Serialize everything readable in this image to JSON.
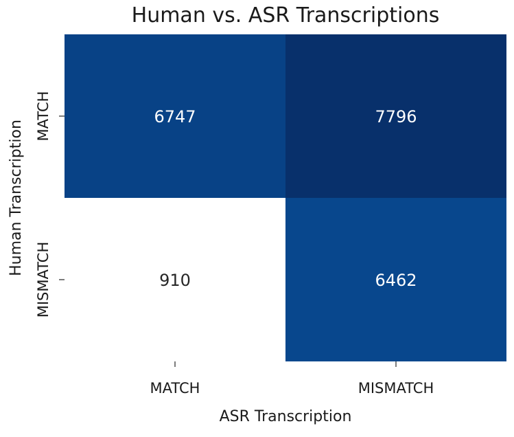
{
  "chart_data": {
    "type": "heatmap",
    "title": "Human vs. ASR Transcriptions",
    "xlabel": "ASR Transcription",
    "ylabel": "Human Transcription",
    "x_categories": [
      "MATCH",
      "MISMATCH"
    ],
    "y_categories": [
      "MATCH",
      "MISMATCH"
    ],
    "values": [
      [
        6747,
        7796
      ],
      [
        910,
        6462
      ]
    ],
    "colormap": "Blues",
    "colorbar": false,
    "annotations": true
  },
  "colors": {
    "low": "#ffffff",
    "high": "#08306b",
    "text_light": "#ffffff",
    "text_dark": "#262626"
  }
}
